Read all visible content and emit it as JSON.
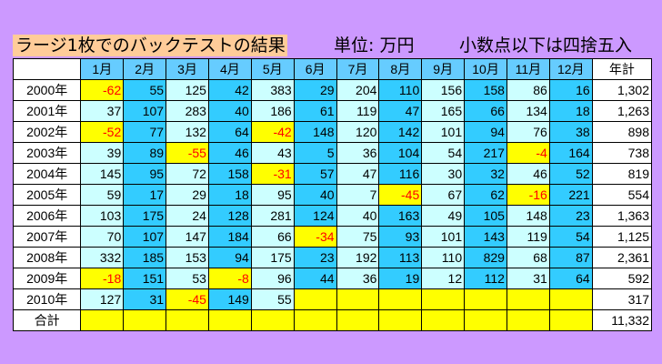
{
  "header": {
    "title": "ラージ1枚でのバックテストの結果",
    "unit": "単位: 万円",
    "rounding_note": "小数点以下は四捨五入"
  },
  "table": {
    "corner": "",
    "months": [
      "1月",
      "2月",
      "3月",
      "4月",
      "5月",
      "6月",
      "7月",
      "8月",
      "9月",
      "10月",
      "11月",
      "12月"
    ],
    "total_header": "年計",
    "rows": [
      {
        "year": "2000年",
        "values": [
          "-62",
          "55",
          "125",
          "42",
          "383",
          "29",
          "204",
          "110",
          "156",
          "158",
          "86",
          "16"
        ],
        "total": "1,302"
      },
      {
        "year": "2001年",
        "values": [
          "37",
          "107",
          "283",
          "40",
          "186",
          "61",
          "119",
          "47",
          "165",
          "66",
          "134",
          "18"
        ],
        "total": "1,263"
      },
      {
        "year": "2002年",
        "values": [
          "-52",
          "77",
          "132",
          "64",
          "-42",
          "148",
          "120",
          "142",
          "101",
          "94",
          "76",
          "38"
        ],
        "total": "898"
      },
      {
        "year": "2003年",
        "values": [
          "39",
          "89",
          "-55",
          "46",
          "43",
          "5",
          "36",
          "104",
          "54",
          "217",
          "-4",
          "164"
        ],
        "total": "738"
      },
      {
        "year": "2004年",
        "values": [
          "145",
          "95",
          "72",
          "158",
          "-31",
          "57",
          "47",
          "116",
          "30",
          "32",
          "46",
          "52"
        ],
        "total": "819"
      },
      {
        "year": "2005年",
        "values": [
          "59",
          "17",
          "29",
          "18",
          "95",
          "40",
          "7",
          "-45",
          "67",
          "62",
          "-16",
          "221"
        ],
        "total": "554"
      },
      {
        "year": "2006年",
        "values": [
          "103",
          "175",
          "24",
          "128",
          "281",
          "124",
          "40",
          "163",
          "49",
          "105",
          "148",
          "23"
        ],
        "total": "1,363"
      },
      {
        "year": "2007年",
        "values": [
          "70",
          "107",
          "147",
          "184",
          "66",
          "-34",
          "75",
          "93",
          "101",
          "143",
          "119",
          "54"
        ],
        "total": "1,125"
      },
      {
        "year": "2008年",
        "values": [
          "332",
          "185",
          "153",
          "94",
          "175",
          "23",
          "192",
          "113",
          "110",
          "829",
          "68",
          "87"
        ],
        "total": "2,361"
      },
      {
        "year": "2009年",
        "values": [
          "-18",
          "151",
          "53",
          "-8",
          "96",
          "44",
          "36",
          "19",
          "12",
          "112",
          "31",
          "64"
        ],
        "total": "592"
      },
      {
        "year": "2010年",
        "values": [
          "127",
          "31",
          "-45",
          "149",
          "55",
          "",
          "",
          "",
          "",
          "",
          "",
          ""
        ],
        "total": "317"
      }
    ],
    "footer": {
      "label": "合計",
      "total": "11,332"
    }
  }
}
